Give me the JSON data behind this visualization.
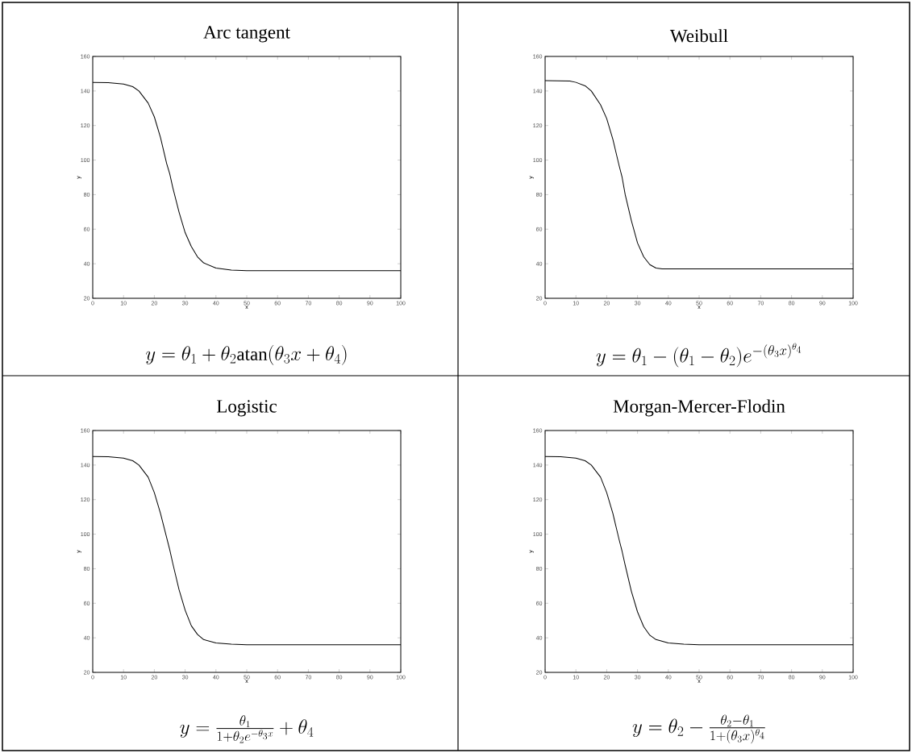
{
  "chart_data": [
    {
      "type": "line",
      "title": "Arc tangent",
      "xlabel": "x",
      "ylabel": "y",
      "xlim": [
        0,
        100
      ],
      "ylim": [
        20,
        160
      ],
      "xticks": [
        0,
        10,
        20,
        30,
        40,
        50,
        60,
        70,
        80,
        90,
        100
      ],
      "yticks": [
        20,
        40,
        60,
        80,
        100,
        120,
        140,
        160
      ],
      "x": [
        0,
        5,
        10,
        13,
        15,
        18,
        20,
        22,
        24,
        25,
        26,
        28,
        30,
        32,
        34,
        36,
        40,
        45,
        50,
        60,
        80,
        100
      ],
      "series": [
        {
          "color": "#000000",
          "values": [
            145,
            144.8,
            144,
            142.5,
            140,
            133,
            125,
            113,
            98,
            92,
            84,
            70,
            58,
            50,
            44,
            40.5,
            37.5,
            36.3,
            36,
            36,
            36,
            36
          ]
        }
      ],
      "annotations": [
        "y = \\theta_1 + \\theta_2\\mathrm{atan}(\\theta_3 x + \\theta_4)"
      ]
    },
    {
      "type": "line",
      "title": "Weibull",
      "xlabel": "x",
      "ylabel": "y",
      "xlim": [
        0,
        100
      ],
      "ylim": [
        20,
        160
      ],
      "xticks": [
        0,
        10,
        20,
        30,
        40,
        50,
        60,
        70,
        80,
        90,
        100
      ],
      "yticks": [
        20,
        40,
        60,
        80,
        100,
        120,
        140,
        160
      ],
      "x": [
        0,
        8,
        10,
        13,
        15,
        18,
        20,
        22,
        24,
        25,
        26,
        28,
        30,
        32,
        34,
        36,
        38,
        40,
        60,
        80,
        100
      ],
      "series": [
        {
          "color": "#000000",
          "values": [
            146,
            145.8,
            145,
            143,
            140,
            132,
            124,
            112,
            97,
            90,
            80,
            65,
            52,
            44,
            39.5,
            37.5,
            37,
            37,
            37,
            37,
            37
          ]
        }
      ],
      "annotations": [
        "y = \\theta_1 - (\\theta_1 - \\theta_2)e^{-(\\theta_3 x)^{\\theta_4}}"
      ]
    },
    {
      "type": "line",
      "title": "Logistic",
      "xlabel": "x",
      "ylabel": "y",
      "xlim": [
        0,
        100
      ],
      "ylim": [
        20,
        160
      ],
      "xticks": [
        0,
        10,
        20,
        30,
        40,
        50,
        60,
        70,
        80,
        90,
        100
      ],
      "yticks": [
        20,
        40,
        60,
        80,
        100,
        120,
        140,
        160
      ],
      "x": [
        0,
        5,
        10,
        13,
        15,
        18,
        20,
        22,
        24,
        25,
        26,
        28,
        30,
        32,
        34,
        36,
        40,
        45,
        50,
        60,
        80,
        100
      ],
      "series": [
        {
          "color": "#000000",
          "values": [
            145,
            144.8,
            144,
            142.5,
            140,
            133,
            124,
            112,
            98,
            91,
            83,
            68,
            56,
            47,
            42,
            39,
            37,
            36.3,
            36,
            36,
            36,
            36
          ]
        }
      ],
      "annotations": [
        "y = \\frac{\\theta_1}{1+\\theta_2 e^{-\\theta_3 x}} + \\theta_4"
      ]
    },
    {
      "type": "line",
      "title": "Morgan-Mercer-Flodin",
      "xlabel": "x",
      "ylabel": "y",
      "xlim": [
        0,
        100
      ],
      "ylim": [
        20,
        160
      ],
      "xticks": [
        0,
        10,
        20,
        30,
        40,
        50,
        60,
        70,
        80,
        90,
        100
      ],
      "yticks": [
        20,
        40,
        60,
        80,
        100,
        120,
        140,
        160
      ],
      "x": [
        0,
        5,
        10,
        13,
        15,
        18,
        20,
        22,
        24,
        25,
        26,
        28,
        30,
        32,
        34,
        36,
        40,
        45,
        50,
        60,
        80,
        100
      ],
      "series": [
        {
          "color": "#000000",
          "values": [
            145,
            144.8,
            144,
            142.5,
            140,
            133,
            124,
            112,
            97,
            90,
            82,
            67,
            55,
            46.5,
            41.5,
            39,
            37,
            36.3,
            36,
            36,
            36,
            36
          ]
        }
      ],
      "annotations": [
        "y = \\theta_2 - \\frac{\\theta_2-\\theta_1}{1+(\\theta_3 x)^{\\theta_4}}"
      ]
    }
  ]
}
